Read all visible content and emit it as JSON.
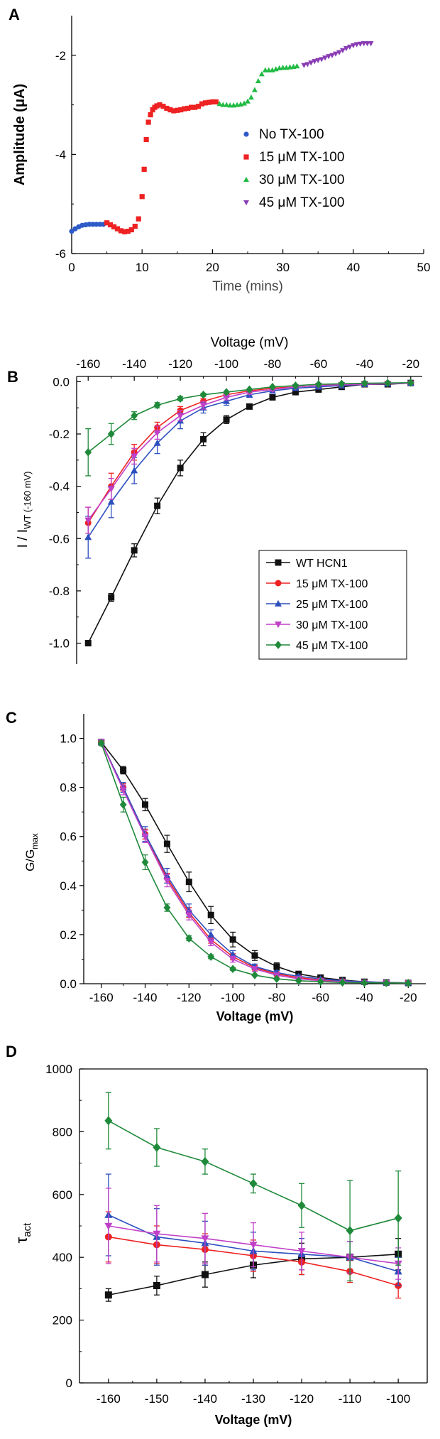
{
  "colors": {
    "black": "#111111",
    "blue": "#2e5ac8",
    "red": "#ee2222",
    "green": "#22bb44",
    "purple": "#8a3cb4",
    "royal": "#2c4fbe",
    "magenta": "#c040c8",
    "dgreen": "#1f8a3a"
  },
  "chart_data": [
    {
      "panel": "A",
      "type": "scatter",
      "xlabel": "Time (mins)",
      "ylabel": "Amplitude (μA)",
      "xlim": [
        0,
        50
      ],
      "ylim": [
        -6,
        -1.2
      ],
      "xticks": [
        "0",
        "10",
        "20",
        "30",
        "40",
        "50"
      ],
      "yticks": [
        "-2",
        "-4",
        "-6"
      ],
      "legend_position": "right",
      "series": [
        {
          "name": "No TX-100",
          "color": "blue",
          "marker": "circle",
          "x": [
            0,
            0.5,
            1,
            1.5,
            2,
            2.5,
            3,
            3.5,
            4,
            4.5
          ],
          "y": [
            -5.55,
            -5.5,
            -5.46,
            -5.43,
            -5.42,
            -5.41,
            -5.41,
            -5.41,
            -5.41,
            -5.41
          ]
        },
        {
          "name": "15 μM TX-100",
          "color": "red",
          "marker": "square",
          "x": [
            5,
            5.5,
            6,
            6.5,
            7,
            7.5,
            8,
            8.5,
            9,
            9.5,
            10,
            10.3,
            10.6,
            10.9,
            11.2,
            11.5,
            11.8,
            12.1,
            12.5,
            13,
            13.5,
            14,
            14.5,
            15,
            15.5,
            16,
            16.5,
            17,
            17.5,
            18,
            18.5,
            19,
            19.5,
            20,
            20.5
          ],
          "y": [
            -5.38,
            -5.42,
            -5.46,
            -5.5,
            -5.54,
            -5.56,
            -5.55,
            -5.52,
            -5.45,
            -5.3,
            -4.85,
            -4.3,
            -3.7,
            -3.35,
            -3.2,
            -3.1,
            -3.05,
            -3.02,
            -3.0,
            -3.03,
            -3.07,
            -3.1,
            -3.12,
            -3.11,
            -3.1,
            -3.08,
            -3.07,
            -3.05,
            -3.05,
            -3.03,
            -2.98,
            -2.96,
            -2.95,
            -2.94,
            -2.94
          ]
        },
        {
          "name": "30 μM TX-100",
          "color": "green",
          "marker": "triangle",
          "x": [
            21,
            21.5,
            22,
            22.5,
            23,
            23.5,
            24,
            24.5,
            25,
            25.5,
            26,
            26.5,
            27,
            27.5,
            28,
            28.5,
            29,
            29.5,
            30,
            30.5,
            31,
            31.5,
            32
          ],
          "y": [
            -2.98,
            -3.0,
            -3.0,
            -3.01,
            -3.01,
            -3.0,
            -2.99,
            -2.97,
            -2.93,
            -2.85,
            -2.7,
            -2.52,
            -2.38,
            -2.3,
            -2.3,
            -2.3,
            -2.28,
            -2.26,
            -2.25,
            -2.25,
            -2.24,
            -2.23,
            -2.22
          ]
        },
        {
          "name": "45 μM TX-100",
          "color": "purple",
          "marker": "triangle-down",
          "x": [
            33,
            33.5,
            34,
            34.5,
            35,
            35.5,
            36,
            36.5,
            37,
            37.5,
            38,
            38.5,
            39,
            39.5,
            40,
            40.5,
            41,
            41.5,
            42,
            42.5
          ],
          "y": [
            -2.2,
            -2.18,
            -2.15,
            -2.12,
            -2.1,
            -2.08,
            -2.05,
            -2.02,
            -2.0,
            -1.97,
            -1.94,
            -1.9,
            -1.86,
            -1.83,
            -1.8,
            -1.78,
            -1.77,
            -1.76,
            -1.76,
            -1.76
          ]
        }
      ]
    },
    {
      "panel": "B",
      "type": "line",
      "xlabel": "Voltage (mV)",
      "ylabel": "I / I",
      "ylabel_sub": "WT (-160 mV)",
      "xlim": [
        -165,
        -15
      ],
      "ylim": [
        -1.08,
        0.02
      ],
      "xticks": [
        "-160",
        "-140",
        "-120",
        "-100",
        "-80",
        "-60",
        "-40",
        "-20"
      ],
      "yticks": [
        "0.0",
        "-0.2",
        "-0.4",
        "-0.6",
        "-0.8",
        "-1.0"
      ],
      "legend_position": "lower-right",
      "x": [
        -160,
        -150,
        -140,
        -130,
        -120,
        -110,
        -100,
        -90,
        -80,
        -70,
        -60,
        -50,
        -40,
        -30,
        -20
      ],
      "series": [
        {
          "name": "WT HCN1",
          "color": "black",
          "marker": "square",
          "values": [
            -1.0,
            -0.825,
            -0.645,
            -0.475,
            -0.33,
            -0.22,
            -0.145,
            -0.095,
            -0.06,
            -0.04,
            -0.03,
            -0.02,
            -0.01,
            -0.01,
            -0.005
          ],
          "err": [
            0.008,
            0.015,
            0.025,
            0.03,
            0.03,
            0.025,
            0.015,
            0.01,
            0.008,
            0.006,
            0.005,
            0.005,
            0.004,
            0.004,
            0.004
          ]
        },
        {
          "name": "15 μM TX-100",
          "color": "red",
          "marker": "circle",
          "values": [
            -0.54,
            -0.4,
            -0.27,
            -0.175,
            -0.11,
            -0.075,
            -0.05,
            -0.035,
            -0.025,
            -0.02,
            -0.015,
            -0.01,
            -0.008,
            -0.006,
            -0.005
          ],
          "err": [
            0.06,
            0.05,
            0.03,
            0.02,
            0.015,
            0.01,
            0.008,
            0.006,
            0.005,
            0.004,
            0.004,
            0.004,
            0.004,
            0.004,
            0.004
          ]
        },
        {
          "name": "25 μM TX-100",
          "color": "royal",
          "marker": "triangle",
          "values": [
            -0.595,
            -0.46,
            -0.34,
            -0.235,
            -0.15,
            -0.1,
            -0.075,
            -0.05,
            -0.035,
            -0.025,
            -0.02,
            -0.015,
            -0.01,
            -0.008,
            -0.006
          ],
          "err": [
            0.08,
            0.06,
            0.05,
            0.04,
            0.03,
            0.02,
            0.015,
            0.01,
            0.008,
            0.006,
            0.005,
            0.005,
            0.004,
            0.004,
            0.004
          ]
        },
        {
          "name": "30 μM TX-100",
          "color": "magenta",
          "marker": "triangle-down",
          "values": [
            -0.53,
            -0.41,
            -0.285,
            -0.195,
            -0.13,
            -0.09,
            -0.06,
            -0.04,
            -0.03,
            -0.02,
            -0.015,
            -0.012,
            -0.01,
            -0.008,
            -0.006
          ],
          "err": [
            0.05,
            0.04,
            0.03,
            0.025,
            0.02,
            0.015,
            0.01,
            0.008,
            0.006,
            0.005,
            0.004,
            0.004,
            0.004,
            0.004,
            0.004
          ]
        },
        {
          "name": "45 μM TX-100",
          "color": "dgreen",
          "marker": "diamond",
          "values": [
            -0.27,
            -0.2,
            -0.13,
            -0.09,
            -0.065,
            -0.05,
            -0.04,
            -0.03,
            -0.02,
            -0.015,
            -0.01,
            -0.008,
            -0.006,
            -0.005,
            -0.004
          ],
          "err": [
            0.09,
            0.04,
            0.015,
            0.01,
            0.008,
            0.006,
            0.005,
            0.004,
            0.004,
            0.004,
            0.004,
            0.004,
            0.004,
            0.004,
            0.004
          ]
        }
      ]
    },
    {
      "panel": "C",
      "type": "line",
      "xlabel": "Voltage (mV)",
      "ylabel": "G/G",
      "ylabel_sub": "max",
      "xlim": [
        -168,
        -12
      ],
      "ylim": [
        0,
        1.1
      ],
      "xticks": [
        "-160",
        "-140",
        "-120",
        "-100",
        "-80",
        "-60",
        "-40",
        "-20"
      ],
      "yticks": [
        "0.0",
        "0.2",
        "0.4",
        "0.6",
        "0.8",
        "1.0"
      ],
      "x": [
        -160,
        -150,
        -140,
        -130,
        -120,
        -110,
        -100,
        -90,
        -80,
        -70,
        -60,
        -50,
        -40,
        -30,
        -20
      ],
      "series": [
        {
          "name": "WT HCN1",
          "color": "black",
          "marker": "square",
          "values": [
            0.985,
            0.87,
            0.73,
            0.57,
            0.415,
            0.28,
            0.18,
            0.115,
            0.07,
            0.04,
            0.025,
            0.015,
            0.008,
            0.005,
            0.003
          ],
          "err": [
            0.01,
            0.015,
            0.025,
            0.035,
            0.04,
            0.035,
            0.03,
            0.02,
            0.015,
            0.01,
            0.008,
            0.006,
            0.005,
            0.004,
            0.004
          ]
        },
        {
          "name": "15 μM TX-100",
          "color": "red",
          "marker": "circle",
          "values": [
            0.985,
            0.8,
            0.61,
            0.43,
            0.29,
            0.18,
            0.11,
            0.065,
            0.04,
            0.025,
            0.015,
            0.01,
            0.006,
            0.004,
            0.003
          ],
          "err": [
            0.01,
            0.015,
            0.02,
            0.02,
            0.02,
            0.015,
            0.012,
            0.01,
            0.008,
            0.006,
            0.005,
            0.004,
            0.004,
            0.004,
            0.004
          ]
        },
        {
          "name": "25 μM TX-100",
          "color": "royal",
          "marker": "triangle",
          "values": [
            0.985,
            0.8,
            0.61,
            0.44,
            0.3,
            0.2,
            0.12,
            0.07,
            0.045,
            0.03,
            0.02,
            0.012,
            0.008,
            0.005,
            0.003
          ],
          "err": [
            0.01,
            0.02,
            0.03,
            0.03,
            0.025,
            0.02,
            0.015,
            0.01,
            0.008,
            0.006,
            0.005,
            0.004,
            0.004,
            0.004,
            0.004
          ]
        },
        {
          "name": "30 μM TX-100",
          "color": "magenta",
          "marker": "triangle-down",
          "values": [
            0.985,
            0.79,
            0.6,
            0.42,
            0.28,
            0.17,
            0.1,
            0.06,
            0.035,
            0.02,
            0.012,
            0.008,
            0.005,
            0.004,
            0.003
          ],
          "err": [
            0.01,
            0.02,
            0.025,
            0.025,
            0.02,
            0.015,
            0.012,
            0.01,
            0.008,
            0.006,
            0.005,
            0.004,
            0.004,
            0.004,
            0.004
          ]
        },
        {
          "name": "45 μM TX-100",
          "color": "dgreen",
          "marker": "diamond",
          "values": [
            0.98,
            0.73,
            0.495,
            0.31,
            0.185,
            0.11,
            0.06,
            0.035,
            0.02,
            0.012,
            0.008,
            0.005,
            0.004,
            0.003,
            0.003
          ],
          "err": [
            0.01,
            0.03,
            0.03,
            0.015,
            0.01,
            0.008,
            0.006,
            0.005,
            0.004,
            0.004,
            0.004,
            0.004,
            0.004,
            0.004,
            0.004
          ]
        }
      ]
    },
    {
      "panel": "D",
      "type": "line",
      "xlabel": "Voltage (mV)",
      "ylabel": "τ",
      "ylabel_sub": "act",
      "xlim": [
        -166,
        -94
      ],
      "ylim": [
        0,
        1000
      ],
      "xticks": [
        "-160",
        "-150",
        "-140",
        "-130",
        "-120",
        "-110",
        "-100"
      ],
      "yticks": [
        "0",
        "200",
        "400",
        "600",
        "800",
        "1000"
      ],
      "x": [
        -160,
        -150,
        -140,
        -130,
        -120,
        -110,
        -100
      ],
      "series": [
        {
          "name": "WT HCN1",
          "color": "black",
          "marker": "square",
          "values": [
            280,
            310,
            345,
            375,
            395,
            400,
            410
          ],
          "err": [
            20,
            30,
            40,
            40,
            50,
            50,
            50
          ]
        },
        {
          "name": "15 μM TX-100",
          "color": "red",
          "marker": "circle",
          "values": [
            465,
            440,
            425,
            405,
            385,
            355,
            310
          ],
          "err": [
            80,
            60,
            50,
            50,
            40,
            35,
            40
          ]
        },
        {
          "name": "25 μM TX-100",
          "color": "royal",
          "marker": "triangle",
          "values": [
            535,
            465,
            445,
            420,
            410,
            400,
            355
          ],
          "err": [
            130,
            90,
            70,
            60,
            50,
            50,
            45
          ]
        },
        {
          "name": "30 μM TX-100",
          "color": "magenta",
          "marker": "triangle-down",
          "values": [
            500,
            475,
            460,
            440,
            420,
            400,
            380
          ],
          "err": [
            120,
            90,
            80,
            70,
            60,
            50,
            50
          ]
        },
        {
          "name": "45 μM TX-100",
          "color": "dgreen",
          "marker": "diamond",
          "values": [
            835,
            750,
            705,
            635,
            565,
            485,
            525
          ],
          "err": [
            90,
            60,
            40,
            30,
            70,
            160,
            150
          ]
        }
      ]
    }
  ]
}
